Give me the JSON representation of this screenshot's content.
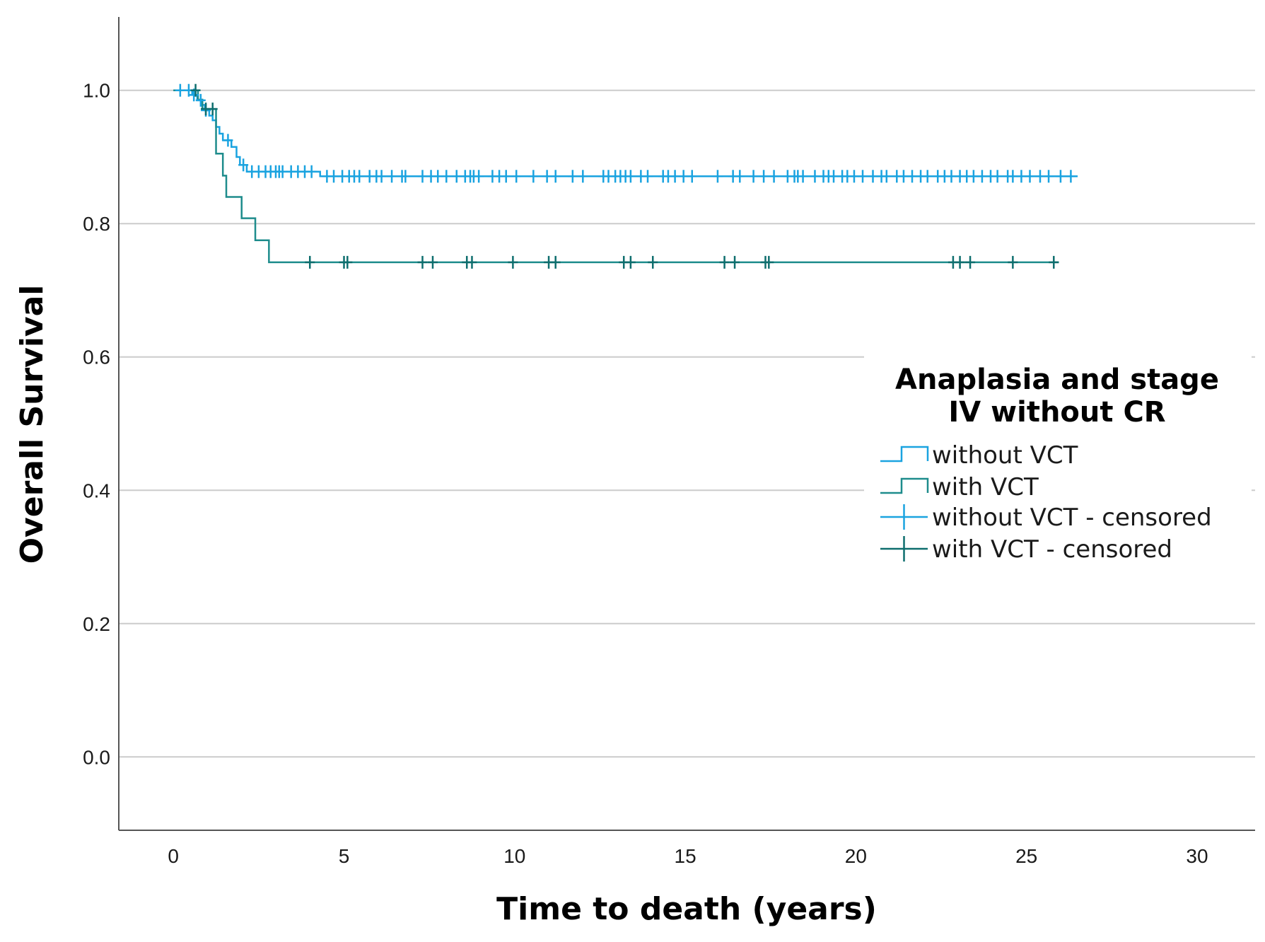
{
  "chart_data": {
    "type": "line",
    "subtype": "kaplan-meier",
    "title": "",
    "xlabel": "Time to death (years)",
    "ylabel": "Overall Survival",
    "xlim": [
      -1.6,
      31.7
    ],
    "ylim": [
      -0.11,
      1.11
    ],
    "xticks": [
      0,
      5,
      10,
      15,
      20,
      25,
      30
    ],
    "xtick_labels": [
      "0",
      "5",
      "10",
      "15",
      "20",
      "25",
      "30"
    ],
    "yticks": [
      0.0,
      0.2,
      0.4,
      0.6,
      0.8,
      1.0
    ],
    "ytick_labels": [
      "0.0",
      "0.2",
      "0.4",
      "0.6",
      "0.8",
      "1.0"
    ],
    "grid": "horizontal",
    "legend": {
      "title_lines": [
        "Anaplasia and stage",
        "IV without CR"
      ],
      "placement": "right",
      "entries": [
        {
          "label": "without VCT",
          "kind": "step",
          "color": "#1aa3e0"
        },
        {
          "label": "with VCT",
          "kind": "step",
          "color": "#1e8c8c"
        },
        {
          "label": "without VCT - censored",
          "kind": "censor",
          "color": "#1aa3e0"
        },
        {
          "label": "with VCT - censored",
          "kind": "censor",
          "color": "#0e6e6e"
        }
      ]
    },
    "series": [
      {
        "name": "without VCT",
        "color": "#1aa3e0",
        "step": [
          [
            0,
            1.0
          ],
          [
            0.55,
            0.993
          ],
          [
            0.7,
            0.985
          ],
          [
            0.82,
            0.978
          ],
          [
            0.92,
            0.97
          ],
          [
            1.05,
            0.962
          ],
          [
            1.15,
            0.955
          ],
          [
            1.25,
            0.945
          ],
          [
            1.35,
            0.935
          ],
          [
            1.45,
            0.925
          ],
          [
            1.7,
            0.915
          ],
          [
            1.85,
            0.9
          ],
          [
            1.95,
            0.888
          ],
          [
            2.15,
            0.878
          ],
          [
            4.3,
            0.871
          ]
        ],
        "end_x": 26.5,
        "censored": [
          0.2,
          0.45,
          0.6,
          0.8,
          0.95,
          1.6,
          2.05,
          2.3,
          2.5,
          2.7,
          2.85,
          3.0,
          3.1,
          3.2,
          3.45,
          3.65,
          3.85,
          4.05,
          4.5,
          4.7,
          4.95,
          5.15,
          5.3,
          5.45,
          5.75,
          5.95,
          6.1,
          6.4,
          6.7,
          6.8,
          7.3,
          7.55,
          7.75,
          8.0,
          8.3,
          8.55,
          8.7,
          8.8,
          8.95,
          9.35,
          9.55,
          9.75,
          10.05,
          10.55,
          10.95,
          11.2,
          11.7,
          12.0,
          12.6,
          12.75,
          12.95,
          13.1,
          13.25,
          13.4,
          13.7,
          13.9,
          14.35,
          14.5,
          14.7,
          14.95,
          15.2,
          15.95,
          16.4,
          16.6,
          17.0,
          17.3,
          17.6,
          18.0,
          18.2,
          18.3,
          18.45,
          18.8,
          19.05,
          19.2,
          19.35,
          19.6,
          19.75,
          19.95,
          20.2,
          20.5,
          20.75,
          20.9,
          21.2,
          21.4,
          21.65,
          21.9,
          22.1,
          22.4,
          22.6,
          22.8,
          23.05,
          23.25,
          23.45,
          23.7,
          23.95,
          24.15,
          24.45,
          24.6,
          24.85,
          25.1,
          25.4,
          25.65,
          26.0,
          26.3
        ]
      },
      {
        "name": "with VCT",
        "color": "#1e8c8c",
        "step": [
          [
            0,
            1.0
          ],
          [
            0.72,
            0.986
          ],
          [
            0.85,
            0.972
          ],
          [
            1.25,
            0.905
          ],
          [
            1.45,
            0.872
          ],
          [
            1.55,
            0.84
          ],
          [
            2.0,
            0.808
          ],
          [
            2.4,
            0.775
          ],
          [
            2.8,
            0.742
          ]
        ],
        "end_x": 25.95,
        "censored": [
          0.65,
          0.95,
          1.15,
          4.0,
          5.0,
          5.1,
          7.3,
          7.6,
          8.6,
          8.75,
          9.95,
          11.0,
          11.2,
          13.2,
          13.4,
          14.05,
          16.15,
          16.45,
          17.35,
          17.45,
          22.85,
          23.05,
          23.35,
          24.6,
          25.8
        ],
        "censor_color": "#0e6e6e"
      }
    ]
  }
}
